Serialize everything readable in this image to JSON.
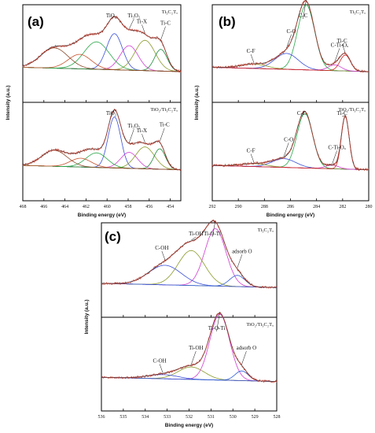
{
  "chart_data": [
    {
      "type": "line",
      "panel": "(a)",
      "xlabel": "Binding energy (eV)",
      "ylabel": "Intensity (a.u.)",
      "xlim": [
        468,
        453
      ],
      "xticks": [
        468,
        466,
        464,
        462,
        460,
        458,
        456,
        454
      ],
      "subplots": [
        {
          "sample": "Ti3C2Tx",
          "sample_text": "Ti₃C₂Tₓ",
          "peaks": [
            {
              "label": "TiO2",
              "label_text": "TiO₂",
              "center": 459.3,
              "height": 0.5,
              "width": 0.75,
              "color": "#3b4fd8"
            },
            {
              "label": "Ti3O5",
              "label_text": "Ti₃O₅",
              "center": 457.9,
              "height": 0.34,
              "width": 0.85,
              "color": "#d23cd2"
            },
            {
              "label": "Ti-X",
              "label_text": "Ti-X",
              "center": 456.4,
              "height": 0.42,
              "width": 0.95,
              "color": "#8a9a2a"
            },
            {
              "label": "Ti-C",
              "label_text": "Ti-C",
              "center": 454.9,
              "height": 0.3,
              "width": 0.6,
              "color": "#1f8a3a"
            },
            {
              "label": "",
              "label_text": "",
              "center": 461.0,
              "height": 0.38,
              "width": 1.2,
              "color": "#2aa84a"
            },
            {
              "label": "",
              "label_text": "",
              "center": 462.6,
              "height": 0.2,
              "width": 1.1,
              "color": "#c7502a"
            },
            {
              "label": "",
              "label_text": "",
              "center": 465.0,
              "height": 0.28,
              "width": 1.3,
              "color": "#8a4a2a"
            }
          ]
        },
        {
          "sample": "TiO2/Ti3C2Tx",
          "sample_text": "TiO₂/Ti₃C₂Tₓ",
          "peaks": [
            {
              "label": "TiO2",
              "label_text": "TiO₂",
              "center": 459.3,
              "height": 0.7,
              "width": 0.6,
              "color": "#3b4fd8"
            },
            {
              "label": "Ti3O5",
              "label_text": "Ti₃O₅",
              "center": 457.9,
              "height": 0.22,
              "width": 0.8,
              "color": "#d23cd2"
            },
            {
              "label": "Ti-X",
              "label_text": "Ti-X",
              "center": 456.4,
              "height": 0.3,
              "width": 0.9,
              "color": "#8a9a2a"
            },
            {
              "label": "Ti-C",
              "label_text": "Ti-C",
              "center": 455.0,
              "height": 0.28,
              "width": 0.55,
              "color": "#1f8a3a"
            },
            {
              "label": "",
              "label_text": "",
              "center": 461.0,
              "height": 0.2,
              "width": 1.0,
              "color": "#2aa84a"
            },
            {
              "label": "",
              "label_text": "",
              "center": 462.5,
              "height": 0.12,
              "width": 1.0,
              "color": "#c7502a"
            },
            {
              "label": "",
              "label_text": "",
              "center": 465.0,
              "height": 0.22,
              "width": 1.2,
              "color": "#8a4a2a"
            }
          ]
        }
      ]
    },
    {
      "type": "line",
      "panel": "(b)",
      "xlabel": "Binding energy (eV)",
      "ylabel": "Intensity (a.u.)",
      "xlim": [
        292,
        280
      ],
      "xticks": [
        292,
        290,
        288,
        286,
        284,
        282,
        280
      ],
      "subplots": [
        {
          "sample": "Ti3C2Tx",
          "sample_text": "Ti₃C₂Tₓ",
          "peaks": [
            {
              "label": "C-C",
              "label_text": "C-C",
              "center": 284.8,
              "height": 0.9,
              "width": 0.65,
              "color": "#2aa84a"
            },
            {
              "label": "C-O",
              "label_text": "C-O",
              "center": 286.3,
              "height": 0.22,
              "width": 0.9,
              "color": "#3b4fd8"
            },
            {
              "label": "C-F",
              "label_text": "C-F",
              "center": 288.8,
              "height": 0.06,
              "width": 1.0,
              "color": "#8a9a2a"
            },
            {
              "label": "C-Ti-Ox",
              "label_text": "C-Ti-Oₓ",
              "center": 282.6,
              "height": 0.08,
              "width": 0.5,
              "color": "#d23cd2"
            },
            {
              "label": "Ti-C",
              "label_text": "Ti-C",
              "center": 281.8,
              "height": 0.22,
              "width": 0.4,
              "color": "#d02020"
            }
          ]
        },
        {
          "sample": "TiO2/Ti3C2Tx",
          "sample_text": "TiO₂/Ti₃C₂Tₓ",
          "peaks": [
            {
              "label": "C-C",
              "label_text": "C-C",
              "center": 284.9,
              "height": 0.75,
              "width": 0.6,
              "color": "#2aa84a"
            },
            {
              "label": "C-O",
              "label_text": "C-O",
              "center": 286.5,
              "height": 0.12,
              "width": 0.9,
              "color": "#3b4fd8"
            },
            {
              "label": "C-F",
              "label_text": "C-F",
              "center": 288.8,
              "height": 0.04,
              "width": 1.0,
              "color": "#8a9a2a"
            },
            {
              "label": "C-Ti-Ox",
              "label_text": "C-Ti-Oₓ",
              "center": 282.8,
              "height": 0.05,
              "width": 0.5,
              "color": "#d23cd2"
            },
            {
              "label": "Ti-C",
              "label_text": "Ti-C",
              "center": 281.8,
              "height": 0.72,
              "width": 0.3,
              "color": "#d02020"
            }
          ]
        }
      ]
    },
    {
      "type": "line",
      "panel": "(c)",
      "xlabel": "Binding energy (eV)",
      "ylabel": "Intensity (a.u.)",
      "xlim": [
        536,
        528
      ],
      "xticks": [
        536,
        535,
        534,
        533,
        532,
        531,
        530,
        529,
        528
      ],
      "subplots": [
        {
          "sample": "Ti3C2Tx",
          "sample_text": "Ti₃C₂Tₓ",
          "peaks": [
            {
              "label": "Ti-O-Ti",
              "label_text": "Ti-O-Ti",
              "center": 530.8,
              "height": 0.82,
              "width": 0.48,
              "color": "#d23cd2"
            },
            {
              "label": "Ti-OH",
              "label_text": "Ti-OH",
              "center": 531.9,
              "height": 0.5,
              "width": 0.6,
              "color": "#8a9a2a"
            },
            {
              "label": "C-OH",
              "label_text": "C-OH",
              "center": 533.1,
              "height": 0.28,
              "width": 0.75,
              "color": "#3b4fd8"
            },
            {
              "label": "adsorb O",
              "label_text": "adsorb O",
              "center": 529.8,
              "height": 0.16,
              "width": 0.35,
              "color": "#2a5ad8"
            }
          ]
        },
        {
          "sample": "TiO2/Ti3C2Tx",
          "sample_text": "TiO₂/Ti₃C₂Tₓ",
          "peaks": [
            {
              "label": "Ti-O-Ti",
              "label_text": "Ti-O-Ti",
              "center": 530.6,
              "height": 0.95,
              "width": 0.45,
              "color": "#d23cd2"
            },
            {
              "label": "Ti-OH",
              "label_text": "Ti-OH",
              "center": 531.9,
              "height": 0.18,
              "width": 0.6,
              "color": "#8a9a2a"
            },
            {
              "label": "C-OH",
              "label_text": "C-OH",
              "center": 533.2,
              "height": 0.06,
              "width": 0.7,
              "color": "#3b4fd8"
            },
            {
              "label": "adsorb O",
              "label_text": "adsorb O",
              "center": 529.6,
              "height": 0.14,
              "width": 0.3,
              "color": "#2a5ad8"
            }
          ]
        }
      ]
    }
  ]
}
